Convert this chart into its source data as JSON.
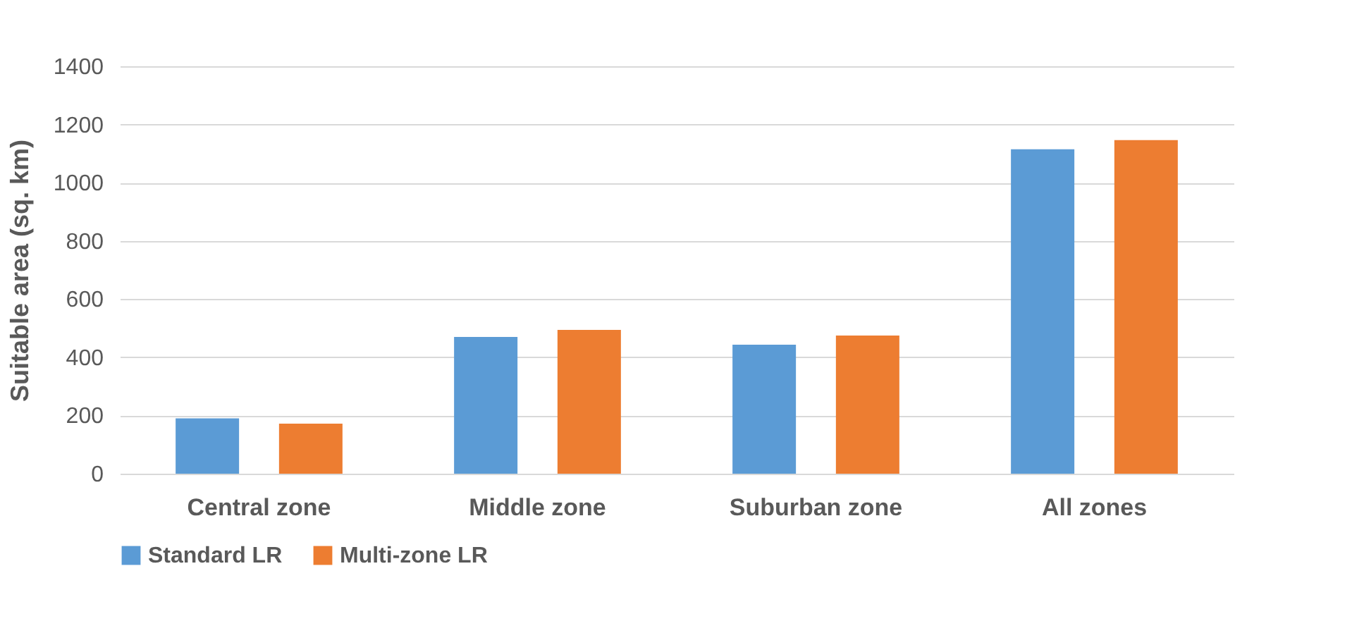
{
  "chart_data": {
    "type": "bar",
    "ylabel": "Suitable area (sq. km)",
    "categories": [
      "Central zone",
      "Middle zone",
      "Suburban zone",
      "All zones"
    ],
    "series": [
      {
        "name": "Standard LR",
        "color": "#5b9bd5",
        "values": [
          190,
          470,
          443,
          1115
        ]
      },
      {
        "name": "Multi-zone LR",
        "color": "#ed7d31",
        "values": [
          172,
          494,
          475,
          1146
        ]
      }
    ],
    "ylim": [
      0,
      1400
    ],
    "yticks": [
      0,
      200,
      400,
      600,
      800,
      {
        "value": 1000,
        "label": "1000"
      },
      {
        "value": 1200,
        "label": "1200"
      },
      {
        "value": 1400,
        "label": "1400"
      }
    ],
    "grid": "y",
    "legend": "bottom"
  }
}
